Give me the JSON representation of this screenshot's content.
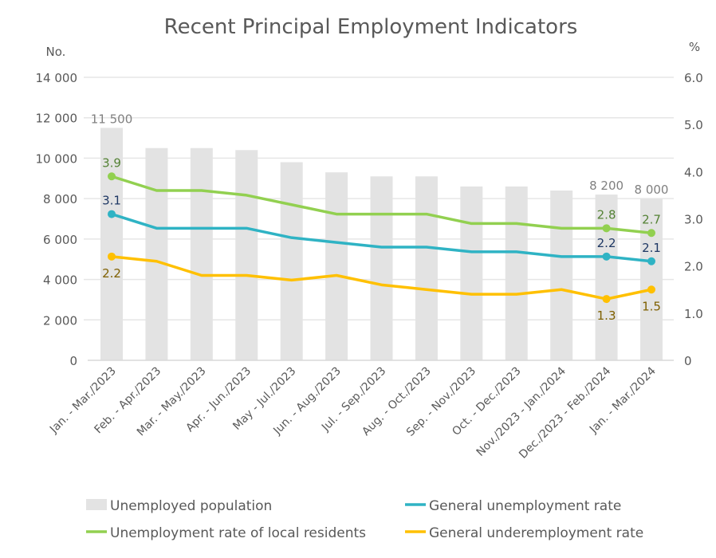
{
  "chart_data": {
    "type": "bar+line",
    "title": "Recent Principal Employment Indicators",
    "left_axis": {
      "label": "No.",
      "range": [
        0,
        14000
      ],
      "ticks": [
        "0",
        "2 000",
        "4 000",
        "6 000",
        "8 000",
        "10 000",
        "12 000",
        "14 000"
      ]
    },
    "right_axis": {
      "label": "%",
      "range": [
        0,
        6.0
      ],
      "ticks": [
        "0",
        "1.0",
        "2.0",
        "3.0",
        "4.0",
        "5.0",
        "6.0"
      ]
    },
    "grid": true,
    "legend_position": "bottom",
    "categories": [
      "Jan. - Mar./2023",
      "Feb. - Apr./2023",
      "Mar. - May./2023",
      "Apr. - Jun./2023",
      "May - Jul./2023",
      "Jun. - Aug./2023",
      "Jul. - Sep./2023",
      "Aug. - Oct./2023",
      "Sep. - Nov./2023",
      "Oct. - Dec./2023",
      "Nov./2023 - Jan./2024",
      "Dec./2023 - Feb./2024",
      "Jan. - Mar./2024"
    ],
    "series": [
      {
        "name": "Unemployed population",
        "type": "bar",
        "axis": "left",
        "color": "#e3e3e3",
        "label_color": "#808080",
        "values": [
          11500,
          10500,
          10500,
          10400,
          9800,
          9300,
          9100,
          9100,
          8600,
          8600,
          8400,
          8200,
          8000
        ],
        "data_labels": {
          "0": "11 500",
          "11": "8 200",
          "12": "8 000"
        }
      },
      {
        "name": "General unemployment rate",
        "type": "line",
        "axis": "right",
        "color": "#2fb3c4",
        "label_color": "#1f3864",
        "values": [
          3.1,
          2.8,
          2.8,
          2.8,
          2.6,
          2.5,
          2.4,
          2.4,
          2.3,
          2.3,
          2.2,
          2.2,
          2.1
        ],
        "data_labels": {
          "0": "3.1",
          "11": "2.2",
          "12": "2.1"
        }
      },
      {
        "name": "Unemployment rate of local residents",
        "type": "line",
        "axis": "right",
        "color": "#92d050",
        "label_color": "#548235",
        "values": [
          3.9,
          3.6,
          3.6,
          3.5,
          3.3,
          3.1,
          3.1,
          3.1,
          2.9,
          2.9,
          2.8,
          2.8,
          2.7
        ],
        "data_labels": {
          "0": "3.9",
          "11": "2.8",
          "12": "2.7"
        }
      },
      {
        "name": "General underemployment rate",
        "type": "line",
        "axis": "right",
        "color": "#ffc000",
        "label_color": "#7f6000",
        "values": [
          2.2,
          2.1,
          1.8,
          1.8,
          1.7,
          1.8,
          1.6,
          1.5,
          1.4,
          1.4,
          1.5,
          1.3,
          1.5
        ],
        "data_labels": {
          "0": "2.2",
          "11": "1.3",
          "12": "1.5"
        }
      }
    ]
  }
}
